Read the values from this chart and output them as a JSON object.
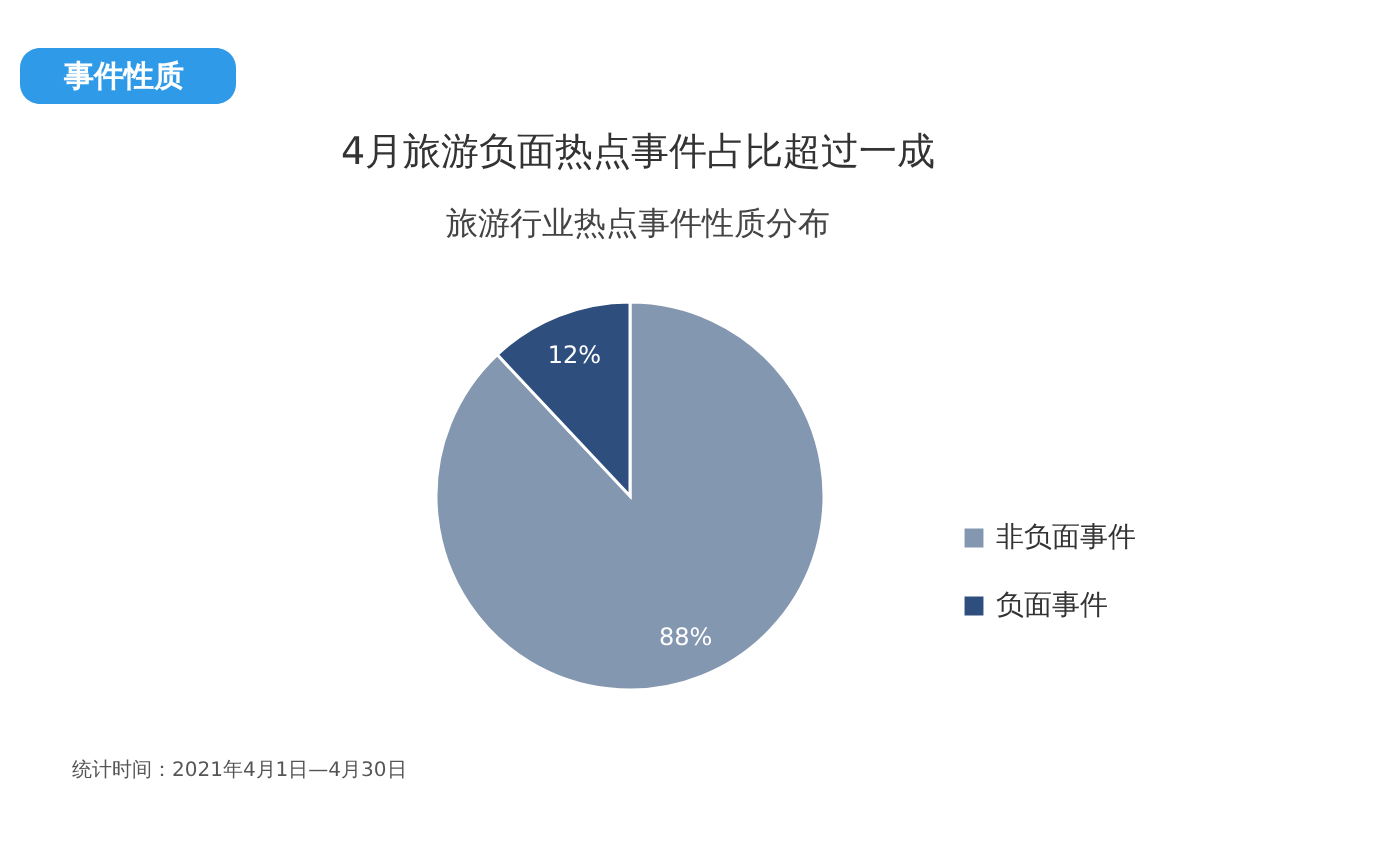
{
  "chart_data": {
    "type": "pie",
    "title": "4月旅游负面热点事件占比超过一成",
    "subtitle": "旅游行业热点事件性质分布",
    "categories": [
      "非负面事件",
      "负面事件"
    ],
    "values": [
      88,
      12
    ],
    "colors": [
      "#8497b0",
      "#2e4e7e"
    ],
    "value_labels": [
      "88%",
      "12%"
    ],
    "legend": "right",
    "annotations": [
      "事件性质",
      "统计时间：2021年4月1日—4月30日"
    ]
  }
}
